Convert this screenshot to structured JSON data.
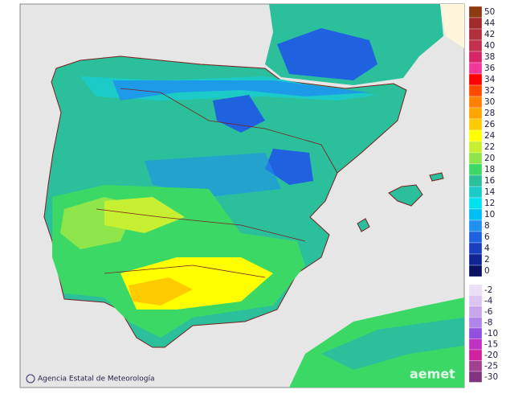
{
  "map": {
    "credit": "Agencia Estatal de Meteorología",
    "logo": "aemet",
    "legend": {
      "positive": [
        {
          "label": 50,
          "color": "#8b3a12"
        },
        {
          "label": 44,
          "color": "#a32a2a"
        },
        {
          "label": 42,
          "color": "#b22f3c"
        },
        {
          "label": 40,
          "color": "#c2304e"
        },
        {
          "label": 38,
          "color": "#d42566"
        },
        {
          "label": 36,
          "color": "#f2399a"
        },
        {
          "label": 34,
          "color": "#ff0000"
        },
        {
          "label": 32,
          "color": "#ff4a00"
        },
        {
          "label": 30,
          "color": "#ff8000"
        },
        {
          "label": 28,
          "color": "#ffa500"
        },
        {
          "label": 26,
          "color": "#ffcb00"
        },
        {
          "label": 24,
          "color": "#ffff00"
        },
        {
          "label": 22,
          "color": "#c8f032"
        },
        {
          "label": 20,
          "color": "#8ee64a"
        },
        {
          "label": 18,
          "color": "#3cd866"
        },
        {
          "label": 16,
          "color": "#2bbf9c"
        },
        {
          "label": 14,
          "color": "#1ccbc8"
        },
        {
          "label": 12,
          "color": "#00e2f2"
        },
        {
          "label": 10,
          "color": "#00bff2"
        },
        {
          "label": 8,
          "color": "#1f8ff0"
        },
        {
          "label": 6,
          "color": "#2061e0"
        },
        {
          "label": 4,
          "color": "#1a40c0"
        },
        {
          "label": 2,
          "color": "#112494"
        },
        {
          "label": 0,
          "color": "#0a1262"
        }
      ],
      "negative": [
        {
          "label": -2,
          "color": "#ece0f6"
        },
        {
          "label": -4,
          "color": "#dbc6f2"
        },
        {
          "label": -6,
          "color": "#c8a6ec"
        },
        {
          "label": -8,
          "color": "#b084e8"
        },
        {
          "label": -10,
          "color": "#9250e0"
        },
        {
          "label": -15,
          "color": "#c032c2"
        },
        {
          "label": -20,
          "color": "#d0229e"
        },
        {
          "label": -25,
          "color": "#a24092"
        },
        {
          "label": -30,
          "color": "#80347e"
        }
      ]
    }
  }
}
